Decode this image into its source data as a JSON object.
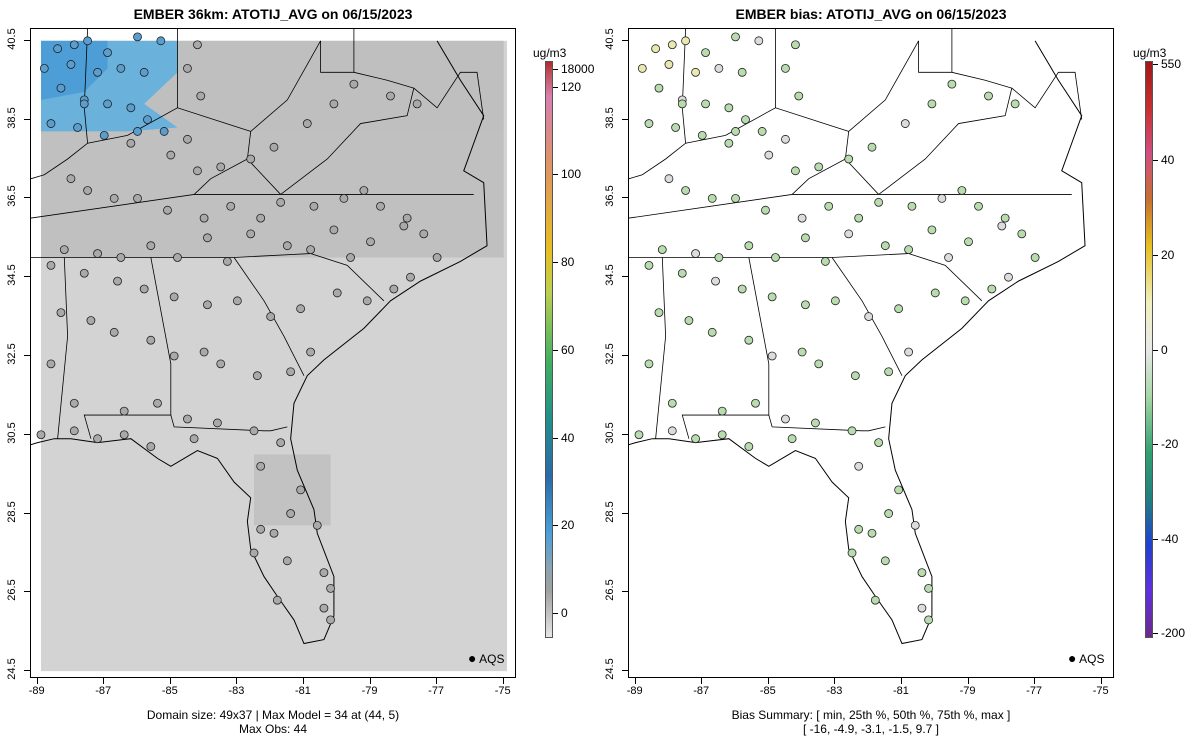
{
  "left_panel": {
    "title": "EMBER 36km: ATOTIJ_AVG on 06/15/2023",
    "footer_line1": "Domain size: 49x37 | Max Model = 34 at (44, 5)",
    "footer_line2": "Max Obs: 44",
    "units": "ug/m3",
    "legend_label": "AQS",
    "colorbar_ticks": [
      "18000",
      "120",
      "100",
      "80",
      "60",
      "40",
      "20",
      "0"
    ],
    "background_color": "#d3d3d3",
    "high_color": "#5aaee0"
  },
  "right_panel": {
    "title": "EMBER bias: ATOTIJ_AVG on 06/15/2023",
    "footer_line1": "Bias Summary: [ min, 25th %, 50th %, 75th %, max ]",
    "footer_line2": "[ -16,   -4.9,   -3.1,   -1.5,   9.7 ]",
    "units": "ug/m3",
    "legend_label": "AQS",
    "colorbar_ticks": [
      "550",
      "40",
      "20",
      "0",
      "-20",
      "-40",
      "-200"
    ],
    "point_color": "#b8dcae"
  },
  "axes": {
    "y_ticks": [
      "40.5",
      "38.5",
      "36.5",
      "34.5",
      "32.5",
      "30.5",
      "28.5",
      "26.5",
      "24.5"
    ],
    "x_ticks": [
      "-89",
      "-87",
      "-85",
      "-83",
      "-81",
      "-79",
      "-77",
      "-75"
    ]
  },
  "chart_data": {
    "type": "heatmap",
    "xlim": [
      -89.2,
      -74.6
    ],
    "ylim": [
      24.3,
      40.8
    ],
    "sites": [
      [
        -88.4,
        40.3
      ],
      [
        -87.9,
        40.4
      ],
      [
        -87.5,
        40.5
      ],
      [
        -86.9,
        40.2
      ],
      [
        -86.0,
        40.6
      ],
      [
        -85.3,
        40.5
      ],
      [
        -84.2,
        40.4
      ],
      [
        -88.8,
        39.8
      ],
      [
        -88.0,
        39.9
      ],
      [
        -87.2,
        39.7
      ],
      [
        -86.5,
        39.8
      ],
      [
        -85.8,
        39.7
      ],
      [
        -84.5,
        39.8
      ],
      [
        -84.1,
        39.1
      ],
      [
        -88.3,
        39.3
      ],
      [
        -87.6,
        39.0
      ],
      [
        -86.9,
        38.9
      ],
      [
        -86.2,
        38.8
      ],
      [
        -85.7,
        38.5
      ],
      [
        -85.2,
        38.2
      ],
      [
        -84.5,
        38.0
      ],
      [
        -88.6,
        38.4
      ],
      [
        -87.8,
        38.3
      ],
      [
        -87.0,
        38.1
      ],
      [
        -86.2,
        37.9
      ],
      [
        -85.0,
        37.6
      ],
      [
        -84.2,
        37.2
      ],
      [
        -83.5,
        37.3
      ],
      [
        -82.6,
        37.5
      ],
      [
        -81.9,
        37.8
      ],
      [
        -80.9,
        38.4
      ],
      [
        -80.1,
        38.9
      ],
      [
        -79.5,
        39.4
      ],
      [
        -78.4,
        39.1
      ],
      [
        -77.6,
        38.9
      ],
      [
        -88.0,
        37.0
      ],
      [
        -87.5,
        36.7
      ],
      [
        -86.7,
        36.5
      ],
      [
        -86.0,
        36.5
      ],
      [
        -85.1,
        36.2
      ],
      [
        -84.0,
        36.0
      ],
      [
        -83.2,
        36.3
      ],
      [
        -82.3,
        36.0
      ],
      [
        -81.7,
        36.4
      ],
      [
        -80.7,
        36.3
      ],
      [
        -79.8,
        36.5
      ],
      [
        -79.2,
        36.7
      ],
      [
        -78.7,
        36.3
      ],
      [
        -77.9,
        36.0
      ],
      [
        -88.2,
        35.2
      ],
      [
        -87.2,
        35.1
      ],
      [
        -86.5,
        35.0
      ],
      [
        -85.6,
        35.3
      ],
      [
        -84.8,
        35.0
      ],
      [
        -83.9,
        35.5
      ],
      [
        -82.6,
        35.6
      ],
      [
        -81.5,
        35.3
      ],
      [
        -80.8,
        35.2
      ],
      [
        -80.1,
        35.7
      ],
      [
        -79.0,
        35.4
      ],
      [
        -78.0,
        35.8
      ],
      [
        -77.4,
        35.6
      ],
      [
        -77.0,
        35.0
      ],
      [
        -88.6,
        34.8
      ],
      [
        -87.6,
        34.6
      ],
      [
        -86.6,
        34.4
      ],
      [
        -85.8,
        34.2
      ],
      [
        -84.9,
        34.0
      ],
      [
        -83.9,
        33.8
      ],
      [
        -83.0,
        33.9
      ],
      [
        -82.0,
        33.5
      ],
      [
        -81.1,
        33.7
      ],
      [
        -80.0,
        34.1
      ],
      [
        -79.1,
        33.9
      ],
      [
        -78.3,
        34.2
      ],
      [
        -77.8,
        34.5
      ],
      [
        -88.3,
        33.6
      ],
      [
        -87.4,
        33.4
      ],
      [
        -86.7,
        33.1
      ],
      [
        -85.6,
        32.9
      ],
      [
        -84.9,
        32.5
      ],
      [
        -84.0,
        32.6
      ],
      [
        -83.5,
        32.3
      ],
      [
        -82.4,
        32.0
      ],
      [
        -81.4,
        32.1
      ],
      [
        -80.8,
        32.6
      ],
      [
        -88.6,
        32.3
      ],
      [
        -87.9,
        31.3
      ],
      [
        -86.4,
        31.1
      ],
      [
        -85.4,
        31.3
      ],
      [
        -84.5,
        30.9
      ],
      [
        -83.6,
        30.8
      ],
      [
        -82.5,
        30.6
      ],
      [
        -81.7,
        30.3
      ],
      [
        -88.9,
        30.5
      ],
      [
        -87.9,
        30.6
      ],
      [
        -87.2,
        30.4
      ],
      [
        -86.4,
        30.5
      ],
      [
        -85.6,
        30.2
      ],
      [
        -84.3,
        30.4
      ],
      [
        -82.3,
        29.7
      ],
      [
        -81.1,
        29.1
      ],
      [
        -82.3,
        28.1
      ],
      [
        -81.9,
        28.0
      ],
      [
        -81.4,
        28.5
      ],
      [
        -80.6,
        28.2
      ],
      [
        -82.5,
        27.5
      ],
      [
        -81.5,
        27.3
      ],
      [
        -80.4,
        27.0
      ],
      [
        -80.2,
        26.6
      ],
      [
        -80.4,
        26.1
      ],
      [
        -81.8,
        26.3
      ],
      [
        -80.2,
        25.8
      ],
      [
        -87.6,
        38.9
      ],
      [
        -86.0,
        38.2
      ],
      [
        -79.6,
        35.0
      ],
      [
        -83.3,
        34.9
      ]
    ]
  }
}
